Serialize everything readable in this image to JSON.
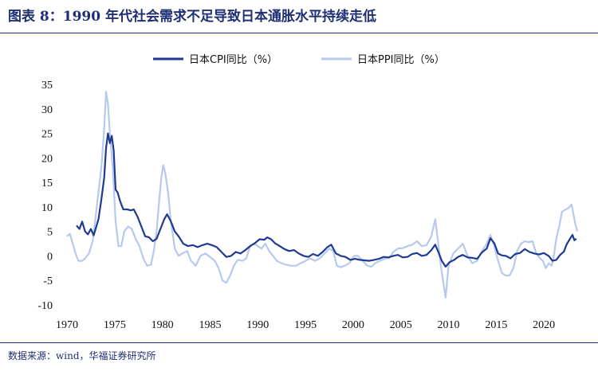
{
  "title": "图表 8：1990 年代社会需求不足导致日本通胀水平持续走低",
  "source": "数据来源：wind，华福证券研究所",
  "colors": {
    "cpi": "#1f3a93",
    "ppi": "#b7c9ef",
    "title": "#1f2f73"
  },
  "chart_data": {
    "type": "line",
    "title": "",
    "xlabel": "",
    "ylabel": "",
    "xlim": [
      1970,
      2023.5
    ],
    "ylim": [
      -10,
      35
    ],
    "x_ticks": [
      "1970",
      "1975",
      "1980",
      "1985",
      "1990",
      "1995",
      "2000",
      "2005",
      "2010",
      "2015",
      "2020"
    ],
    "y_ticks": [
      "35",
      "30",
      "25",
      "20",
      "15",
      "10",
      "5",
      "0",
      "-5",
      "-10"
    ],
    "grid": false,
    "legend": "top-center",
    "series": [
      {
        "name": "日本CPI同比（%）",
        "color": "#1f3a93",
        "points": [
          [
            1971.0,
            6.2
          ],
          [
            1971.3,
            5.5
          ],
          [
            1971.6,
            7.0
          ],
          [
            1971.9,
            5.0
          ],
          [
            1972.2,
            4.4
          ],
          [
            1972.5,
            5.5
          ],
          [
            1972.8,
            4.2
          ],
          [
            1973.0,
            5.5
          ],
          [
            1973.3,
            7.5
          ],
          [
            1973.6,
            11.5
          ],
          [
            1973.9,
            16.0
          ],
          [
            1974.1,
            22.0
          ],
          [
            1974.3,
            25.0
          ],
          [
            1974.5,
            23.0
          ],
          [
            1974.7,
            24.5
          ],
          [
            1974.9,
            21.5
          ],
          [
            1975.1,
            13.5
          ],
          [
            1975.3,
            13.0
          ],
          [
            1975.6,
            11.0
          ],
          [
            1975.9,
            9.5
          ],
          [
            1976.3,
            9.5
          ],
          [
            1976.7,
            9.3
          ],
          [
            1977.0,
            9.5
          ],
          [
            1977.4,
            8.0
          ],
          [
            1977.8,
            6.0
          ],
          [
            1978.2,
            4.0
          ],
          [
            1978.6,
            3.8
          ],
          [
            1979.0,
            3.0
          ],
          [
            1979.4,
            3.5
          ],
          [
            1979.8,
            5.5
          ],
          [
            1980.2,
            7.5
          ],
          [
            1980.5,
            8.5
          ],
          [
            1980.9,
            7.0
          ],
          [
            1981.3,
            5.0
          ],
          [
            1981.7,
            4.0
          ],
          [
            1982.2,
            2.5
          ],
          [
            1982.7,
            2.0
          ],
          [
            1983.2,
            2.2
          ],
          [
            1983.7,
            1.8
          ],
          [
            1984.2,
            2.2
          ],
          [
            1984.7,
            2.5
          ],
          [
            1985.2,
            2.2
          ],
          [
            1985.7,
            1.8
          ],
          [
            1986.2,
            0.8
          ],
          [
            1986.7,
            -0.2
          ],
          [
            1987.2,
            0.0
          ],
          [
            1987.7,
            0.8
          ],
          [
            1988.2,
            0.5
          ],
          [
            1988.7,
            1.2
          ],
          [
            1989.2,
            2.0
          ],
          [
            1989.7,
            2.6
          ],
          [
            1990.2,
            3.4
          ],
          [
            1990.7,
            3.3
          ],
          [
            1991.0,
            3.8
          ],
          [
            1991.4,
            3.4
          ],
          [
            1991.8,
            2.6
          ],
          [
            1992.3,
            2.0
          ],
          [
            1992.8,
            1.4
          ],
          [
            1993.3,
            1.0
          ],
          [
            1993.8,
            1.2
          ],
          [
            1994.3,
            0.5
          ],
          [
            1994.8,
            0.0
          ],
          [
            1995.3,
            -0.2
          ],
          [
            1995.8,
            0.4
          ],
          [
            1996.3,
            0.0
          ],
          [
            1996.8,
            0.8
          ],
          [
            1997.3,
            1.8
          ],
          [
            1997.7,
            2.3
          ],
          [
            1998.2,
            0.5
          ],
          [
            1998.7,
            0.0
          ],
          [
            1999.2,
            -0.2
          ],
          [
            1999.7,
            -0.8
          ],
          [
            2000.2,
            -0.6
          ],
          [
            2000.7,
            -0.8
          ],
          [
            2001.2,
            -0.9
          ],
          [
            2001.7,
            -1.0
          ],
          [
            2002.2,
            -0.8
          ],
          [
            2002.7,
            -0.6
          ],
          [
            2003.2,
            -0.2
          ],
          [
            2003.7,
            -0.3
          ],
          [
            2004.2,
            0.0
          ],
          [
            2004.7,
            0.2
          ],
          [
            2005.2,
            -0.3
          ],
          [
            2005.7,
            -0.2
          ],
          [
            2006.2,
            0.4
          ],
          [
            2006.7,
            0.6
          ],
          [
            2007.2,
            0.0
          ],
          [
            2007.7,
            0.2
          ],
          [
            2008.2,
            1.2
          ],
          [
            2008.6,
            2.3
          ],
          [
            2008.9,
            1.0
          ],
          [
            2009.3,
            -1.0
          ],
          [
            2009.7,
            -2.2
          ],
          [
            2010.1,
            -1.3
          ],
          [
            2010.6,
            -0.8
          ],
          [
            2011.0,
            -0.2
          ],
          [
            2011.5,
            0.2
          ],
          [
            2012.0,
            -0.3
          ],
          [
            2012.5,
            -0.4
          ],
          [
            2013.0,
            -0.6
          ],
          [
            2013.5,
            0.7
          ],
          [
            2014.0,
            1.5
          ],
          [
            2014.4,
            3.6
          ],
          [
            2014.8,
            2.6
          ],
          [
            2015.2,
            0.5
          ],
          [
            2015.6,
            0.1
          ],
          [
            2016.0,
            0.0
          ],
          [
            2016.5,
            -0.5
          ],
          [
            2017.0,
            0.4
          ],
          [
            2017.5,
            0.6
          ],
          [
            2018.0,
            1.4
          ],
          [
            2018.5,
            0.8
          ],
          [
            2019.0,
            0.5
          ],
          [
            2019.5,
            0.3
          ],
          [
            2020.0,
            0.6
          ],
          [
            2020.5,
            0.0
          ],
          [
            2020.9,
            -1.0
          ],
          [
            2021.3,
            -0.8
          ],
          [
            2021.7,
            0.2
          ],
          [
            2022.1,
            0.9
          ],
          [
            2022.4,
            2.4
          ],
          [
            2022.8,
            3.7
          ],
          [
            2023.0,
            4.3
          ],
          [
            2023.2,
            3.2
          ],
          [
            2023.4,
            3.5
          ]
        ]
      },
      {
        "name": "日本PPI同比（%）",
        "color": "#b7c9ef",
        "points": [
          [
            1970.0,
            4.0
          ],
          [
            1970.3,
            4.5
          ],
          [
            1970.6,
            2.5
          ],
          [
            1970.9,
            0.5
          ],
          [
            1971.2,
            -1.0
          ],
          [
            1971.6,
            -1.0
          ],
          [
            1971.9,
            -0.5
          ],
          [
            1972.3,
            0.5
          ],
          [
            1972.7,
            3.0
          ],
          [
            1973.0,
            8.0
          ],
          [
            1973.3,
            13.0
          ],
          [
            1973.6,
            18.0
          ],
          [
            1973.9,
            26.0
          ],
          [
            1974.1,
            33.5
          ],
          [
            1974.3,
            31.0
          ],
          [
            1974.5,
            25.0
          ],
          [
            1974.8,
            18.0
          ],
          [
            1975.1,
            7.0
          ],
          [
            1975.4,
            2.0
          ],
          [
            1975.7,
            2.0
          ],
          [
            1976.0,
            5.0
          ],
          [
            1976.4,
            6.0
          ],
          [
            1976.8,
            5.5
          ],
          [
            1977.2,
            3.5
          ],
          [
            1977.6,
            2.0
          ],
          [
            1978.0,
            -0.5
          ],
          [
            1978.4,
            -2.0
          ],
          [
            1978.8,
            -1.8
          ],
          [
            1979.1,
            1.0
          ],
          [
            1979.4,
            5.0
          ],
          [
            1979.7,
            12.0
          ],
          [
            1979.9,
            16.0
          ],
          [
            1980.1,
            18.5
          ],
          [
            1980.3,
            17.0
          ],
          [
            1980.6,
            13.0
          ],
          [
            1980.9,
            7.0
          ],
          [
            1981.3,
            1.5
          ],
          [
            1981.7,
            0.0
          ],
          [
            1982.1,
            0.5
          ],
          [
            1982.6,
            1.0
          ],
          [
            1983.0,
            -1.0
          ],
          [
            1983.5,
            -2.0
          ],
          [
            1984.0,
            0.0
          ],
          [
            1984.5,
            0.5
          ],
          [
            1985.0,
            -0.2
          ],
          [
            1985.5,
            -1.0
          ],
          [
            1985.9,
            -2.5
          ],
          [
            1986.3,
            -5.0
          ],
          [
            1986.7,
            -5.5
          ],
          [
            1987.1,
            -4.0
          ],
          [
            1987.5,
            -2.0
          ],
          [
            1987.9,
            -0.8
          ],
          [
            1988.4,
            -1.0
          ],
          [
            1988.8,
            -0.5
          ],
          [
            1989.2,
            2.0
          ],
          [
            1989.6,
            2.5
          ],
          [
            1990.0,
            2.0
          ],
          [
            1990.4,
            1.5
          ],
          [
            1990.8,
            2.5
          ],
          [
            1991.2,
            1.0
          ],
          [
            1991.6,
            0.0
          ],
          [
            1992.0,
            -1.0
          ],
          [
            1992.5,
            -1.5
          ],
          [
            1993.0,
            -1.8
          ],
          [
            1993.5,
            -2.0
          ],
          [
            1994.0,
            -2.0
          ],
          [
            1994.5,
            -1.5
          ],
          [
            1995.0,
            -1.0
          ],
          [
            1995.5,
            -0.5
          ],
          [
            1996.0,
            -1.0
          ],
          [
            1996.5,
            -0.5
          ],
          [
            1997.0,
            0.5
          ],
          [
            1997.5,
            1.5
          ],
          [
            1997.9,
            1.0
          ],
          [
            1998.3,
            -2.0
          ],
          [
            1998.7,
            -2.3
          ],
          [
            1999.1,
            -2.0
          ],
          [
            1999.6,
            -1.5
          ],
          [
            2000.1,
            0.0
          ],
          [
            2000.5,
            0.0
          ],
          [
            2001.0,
            -1.0
          ],
          [
            2001.5,
            -2.0
          ],
          [
            2001.9,
            -2.2
          ],
          [
            2002.3,
            -1.5
          ],
          [
            2002.8,
            -1.0
          ],
          [
            2003.3,
            -0.6
          ],
          [
            2003.8,
            -0.4
          ],
          [
            2004.2,
            0.8
          ],
          [
            2004.7,
            1.5
          ],
          [
            2005.2,
            1.6
          ],
          [
            2005.7,
            2.0
          ],
          [
            2006.2,
            2.3
          ],
          [
            2006.7,
            3.0
          ],
          [
            2007.2,
            2.0
          ],
          [
            2007.7,
            2.2
          ],
          [
            2008.2,
            4.0
          ],
          [
            2008.6,
            7.5
          ],
          [
            2008.9,
            3.0
          ],
          [
            2009.2,
            -2.0
          ],
          [
            2009.5,
            -6.0
          ],
          [
            2009.7,
            -8.5
          ],
          [
            2010.0,
            -2.0
          ],
          [
            2010.5,
            0.5
          ],
          [
            2011.0,
            1.5
          ],
          [
            2011.5,
            2.5
          ],
          [
            2012.0,
            0.0
          ],
          [
            2012.5,
            -1.5
          ],
          [
            2013.0,
            -1.0
          ],
          [
            2013.5,
            1.0
          ],
          [
            2014.0,
            2.5
          ],
          [
            2014.4,
            4.3
          ],
          [
            2014.8,
            2.0
          ],
          [
            2015.2,
            -1.0
          ],
          [
            2015.6,
            -3.5
          ],
          [
            2016.0,
            -4.0
          ],
          [
            2016.4,
            -4.0
          ],
          [
            2016.8,
            -2.5
          ],
          [
            2017.2,
            1.0
          ],
          [
            2017.6,
            2.5
          ],
          [
            2018.0,
            3.0
          ],
          [
            2018.4,
            2.8
          ],
          [
            2018.8,
            3.0
          ],
          [
            2019.2,
            0.5
          ],
          [
            2019.6,
            -0.5
          ],
          [
            2019.9,
            -1.0
          ],
          [
            2020.2,
            -2.5
          ],
          [
            2020.5,
            -1.5
          ],
          [
            2020.8,
            -2.0
          ],
          [
            2021.0,
            -0.5
          ],
          [
            2021.3,
            3.5
          ],
          [
            2021.6,
            6.0
          ],
          [
            2021.9,
            9.0
          ],
          [
            2022.3,
            9.5
          ],
          [
            2022.6,
            9.8
          ],
          [
            2022.9,
            10.5
          ],
          [
            2023.1,
            8.5
          ],
          [
            2023.3,
            6.5
          ],
          [
            2023.5,
            5.0
          ]
        ]
      }
    ]
  }
}
